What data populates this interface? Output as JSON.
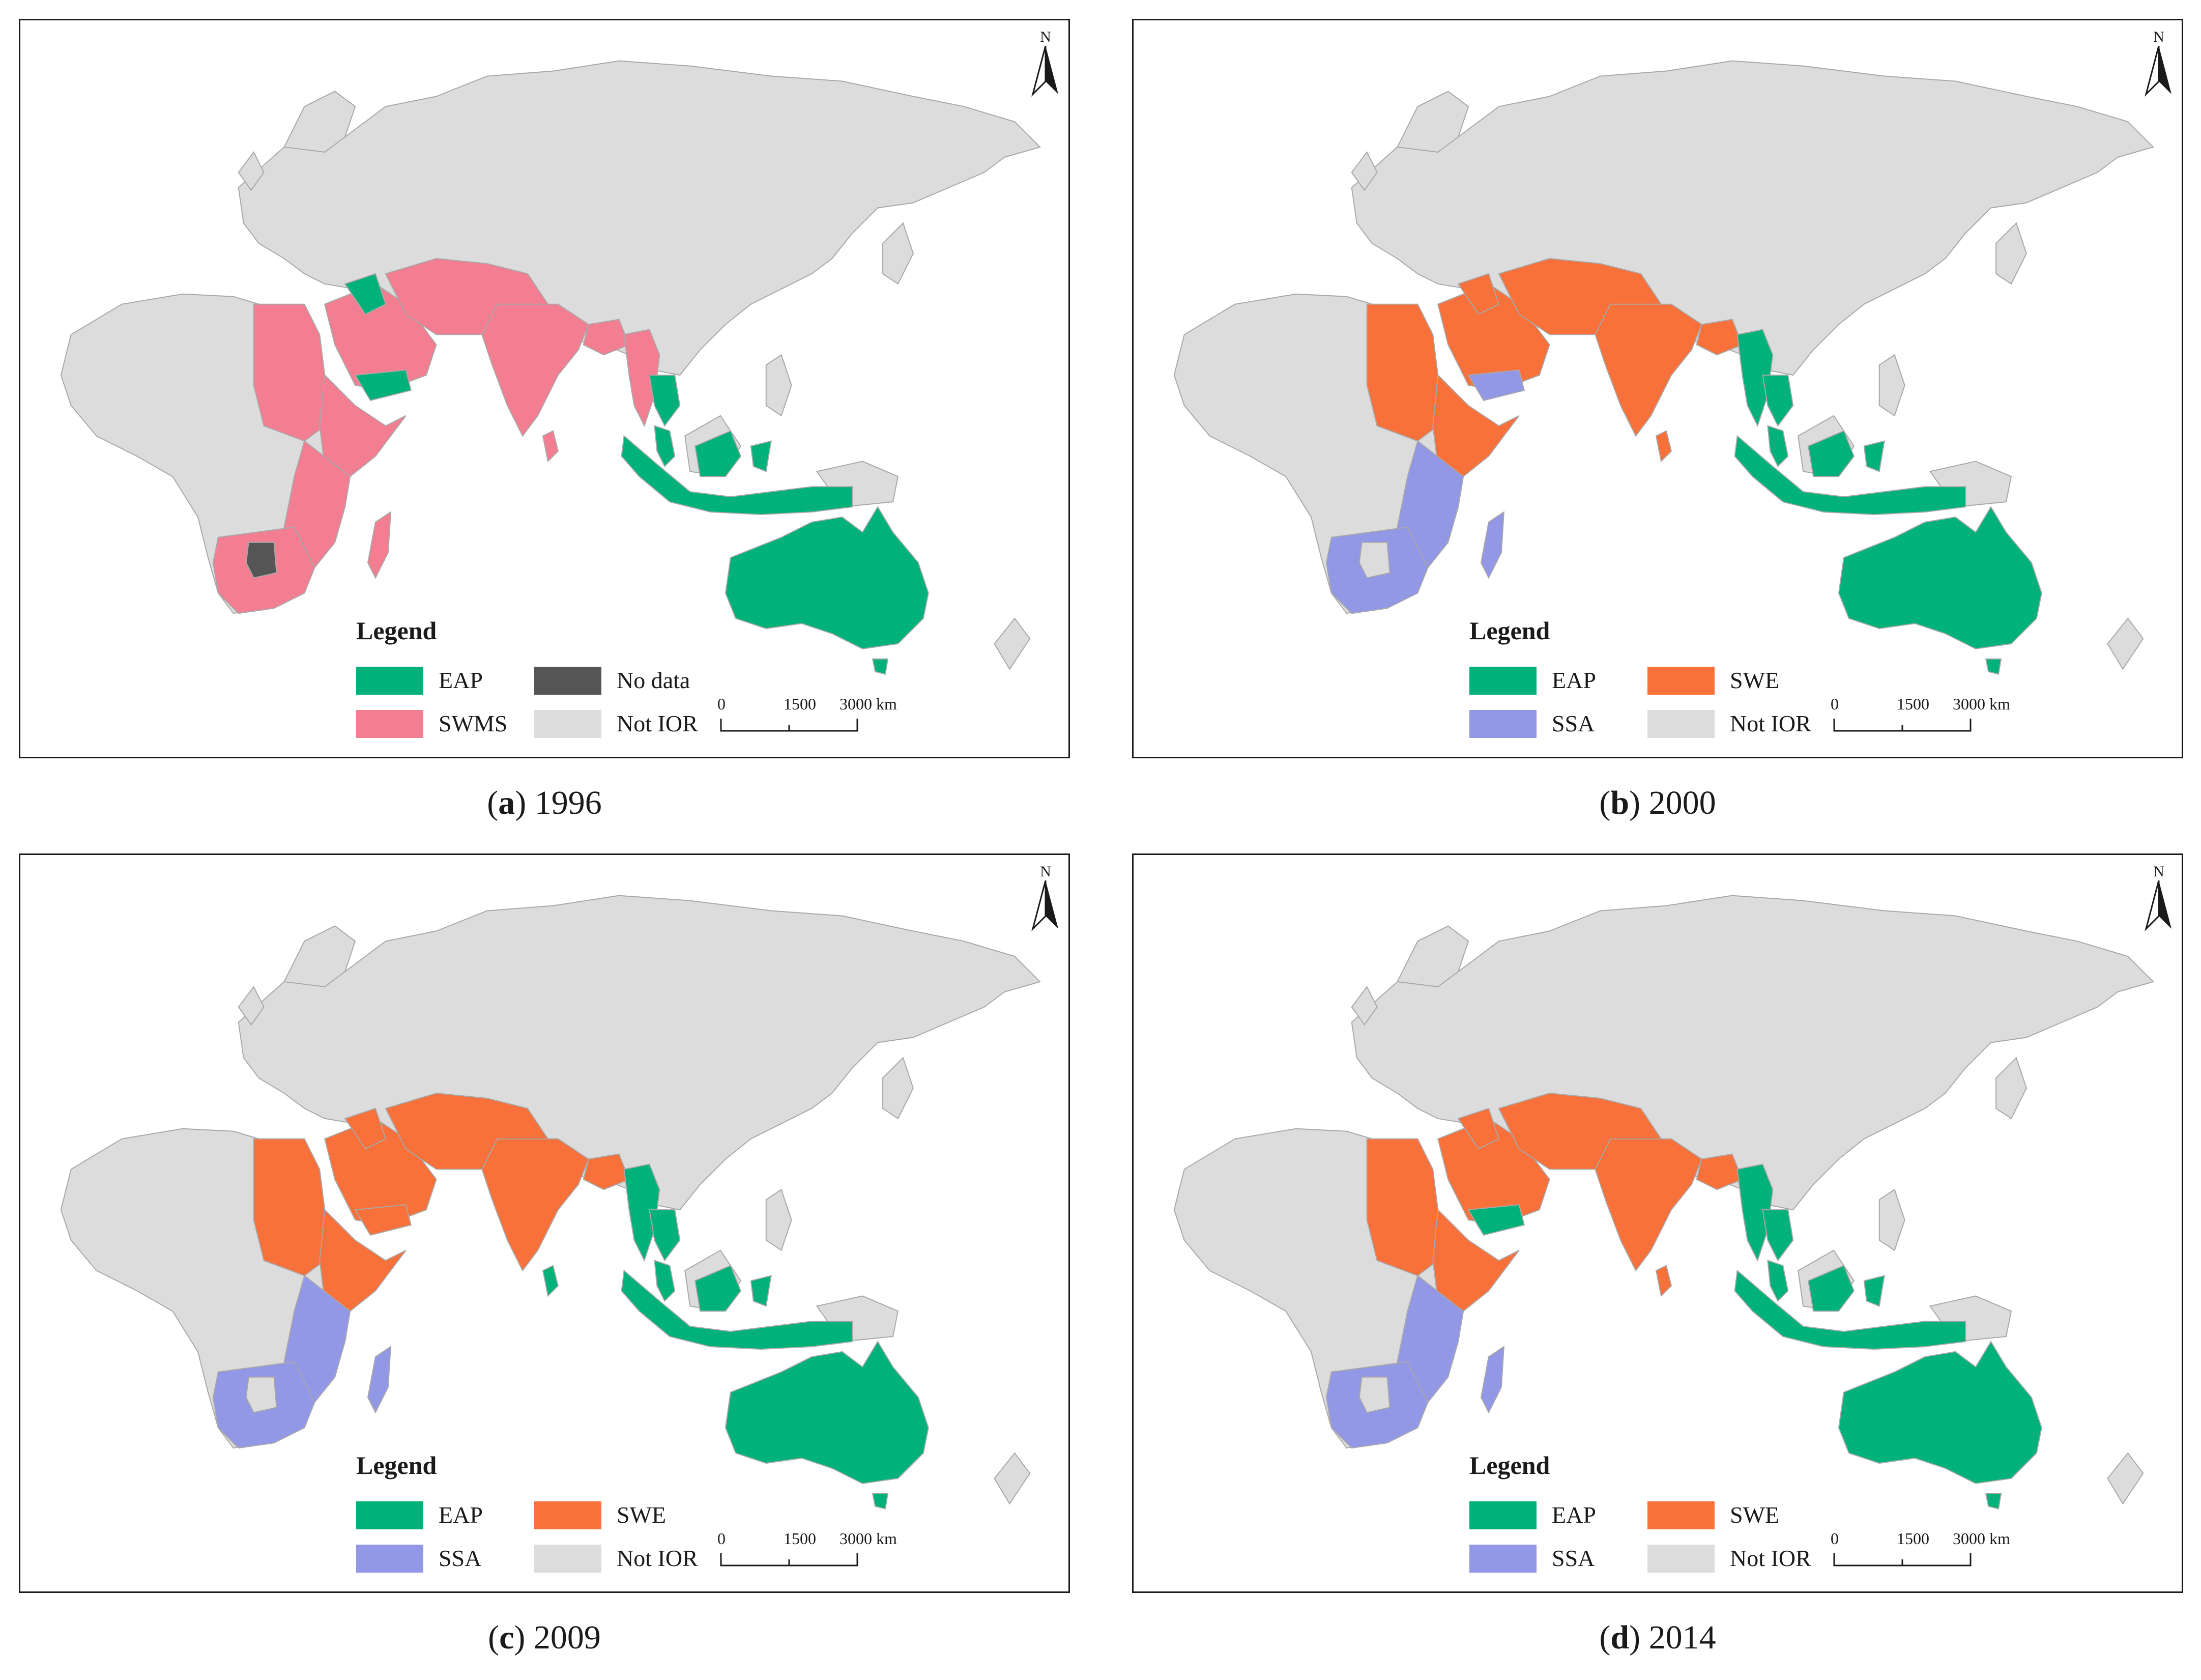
{
  "colors": {
    "land": "#dcdcdc",
    "border": "#a8a8a8",
    "EAP": "#00b27a",
    "EAP_legend": "#00b27a",
    "SWMS": "#f37e92",
    "SWE": "#f9713a",
    "SSA": "#9298e6",
    "No data": "#555555",
    "Not IOR": "#dcdcdc"
  },
  "north_arrow": {
    "label": "N",
    "icon": "north-arrow-icon"
  },
  "scale_bar": {
    "ticks": [
      "0",
      "1500",
      "3000 km"
    ]
  },
  "panels": [
    {
      "id": "a",
      "caption": {
        "letter": "a",
        "year": "1996"
      },
      "legend": {
        "title": "Legend",
        "items": [
          {
            "key": "EAP",
            "label": "EAP"
          },
          {
            "key": "No data",
            "label": "No data"
          },
          {
            "key": "SWMS",
            "label": "SWMS"
          },
          {
            "key": "Not IOR",
            "label": "Not IOR"
          }
        ]
      },
      "regions": {
        "east_africa": "SWMS",
        "egypt_sudan": "SWMS",
        "horn": "SWMS",
        "southern_africa": "SWMS",
        "madagascar": "SWMS",
        "arabia": "SWMS",
        "iraq": "EAP",
        "yemen": "EAP",
        "iran_pak": "SWMS",
        "india": "SWMS",
        "bangladesh": "SWMS",
        "srilanka": "SWMS",
        "myanmar": "SWMS",
        "thailand": "EAP",
        "malaysia": "EAP",
        "indonesia": "EAP",
        "australia": "EAP",
        "botswana": "No data"
      }
    },
    {
      "id": "b",
      "caption": {
        "letter": "b",
        "year": "2000"
      },
      "legend": {
        "title": "Legend",
        "items": [
          {
            "key": "EAP",
            "label": "EAP"
          },
          {
            "key": "SWE",
            "label": "SWE"
          },
          {
            "key": "SSA",
            "label": "SSA"
          },
          {
            "key": "Not IOR",
            "label": "Not IOR"
          }
        ]
      },
      "regions": {
        "east_africa": "SSA",
        "egypt_sudan": "SWE",
        "horn": "SWE",
        "southern_africa": "SSA",
        "madagascar": "SSA",
        "arabia": "SWE",
        "iraq": "SWE",
        "yemen": "SSA",
        "iran_pak": "SWE",
        "india": "SWE",
        "bangladesh": "SWE",
        "srilanka": "SWE",
        "myanmar": "EAP",
        "thailand": "EAP",
        "malaysia": "EAP",
        "indonesia": "EAP",
        "australia": "EAP",
        "botswana": "Not IOR"
      }
    },
    {
      "id": "c",
      "caption": {
        "letter": "c",
        "year": "2009"
      },
      "legend": {
        "title": "Legend",
        "items": [
          {
            "key": "EAP",
            "label": "EAP"
          },
          {
            "key": "SWE",
            "label": "SWE"
          },
          {
            "key": "SSA",
            "label": "SSA"
          },
          {
            "key": "Not IOR",
            "label": "Not IOR"
          }
        ]
      },
      "regions": {
        "east_africa": "SSA",
        "egypt_sudan": "SWE",
        "horn": "SWE",
        "southern_africa": "SSA",
        "madagascar": "SSA",
        "arabia": "SWE",
        "iraq": "SWE",
        "yemen": "SWE",
        "iran_pak": "SWE",
        "india": "SWE",
        "bangladesh": "SWE",
        "srilanka": "EAP",
        "myanmar": "EAP",
        "thailand": "EAP",
        "malaysia": "EAP",
        "indonesia": "EAP",
        "australia": "EAP",
        "botswana": "Not IOR"
      }
    },
    {
      "id": "d",
      "caption": {
        "letter": "d",
        "year": "2014"
      },
      "legend": {
        "title": "Legend",
        "items": [
          {
            "key": "EAP",
            "label": "EAP"
          },
          {
            "key": "SWE",
            "label": "SWE"
          },
          {
            "key": "SSA",
            "label": "SSA"
          },
          {
            "key": "Not IOR",
            "label": "Not IOR"
          }
        ]
      },
      "regions": {
        "east_africa": "SSA",
        "egypt_sudan": "SWE",
        "horn": "SWE",
        "southern_africa": "SSA",
        "madagascar": "SSA",
        "arabia": "SWE",
        "iraq": "SWE",
        "yemen": "EAP",
        "iran_pak": "SWE",
        "india": "SWE",
        "bangladesh": "SWE",
        "srilanka": "SWE",
        "myanmar": "EAP",
        "thailand": "EAP",
        "malaysia": "EAP",
        "indonesia": "EAP",
        "australia": "EAP",
        "botswana": "Not IOR"
      }
    }
  ]
}
